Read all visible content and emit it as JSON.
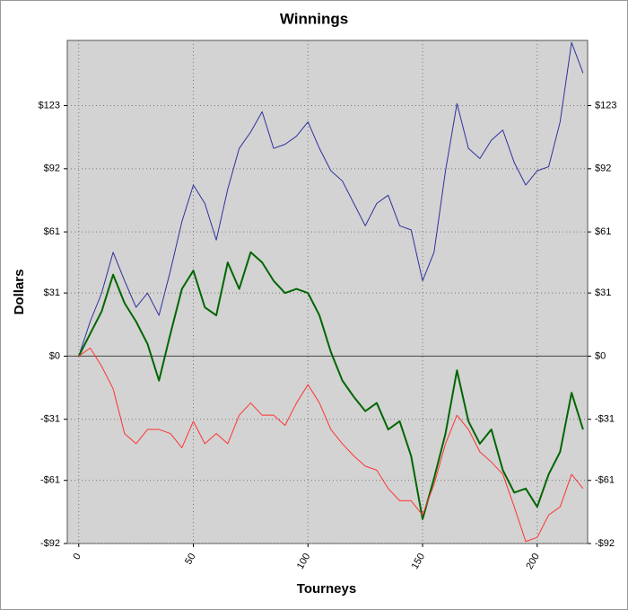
{
  "chart_data": {
    "type": "line",
    "title": "Winnings",
    "x_label": "Tourneys",
    "y_label": "Dollars",
    "x": [
      0,
      5,
      10,
      15,
      20,
      25,
      30,
      35,
      40,
      45,
      50,
      55,
      60,
      65,
      70,
      75,
      80,
      85,
      90,
      95,
      100,
      105,
      110,
      115,
      120,
      125,
      130,
      135,
      140,
      145,
      150,
      155,
      160,
      165,
      170,
      175,
      180,
      185,
      190,
      195,
      200,
      205,
      210,
      215,
      220
    ],
    "series": [
      {
        "color": "#3030a0",
        "line_width": 1,
        "values": [
          0,
          17,
          31,
          51,
          37,
          24,
          31,
          20,
          42,
          66,
          84,
          75,
          57,
          82,
          102,
          110,
          120,
          102,
          104,
          108,
          115,
          102,
          91,
          86,
          75,
          64,
          75,
          79,
          64,
          62,
          37,
          51,
          91,
          124,
          102,
          97,
          106,
          111,
          95,
          84,
          91,
          93,
          115,
          154,
          139
        ]
      },
      {
        "color": "#006600",
        "line_width": 2,
        "values": [
          0,
          11,
          22,
          40,
          26,
          17,
          6,
          -12,
          11,
          33,
          42,
          24,
          20,
          46,
          33,
          51,
          46,
          37,
          31,
          33,
          31,
          20,
          2,
          -12,
          -20,
          -27,
          -23,
          -36,
          -32,
          -49,
          -80,
          -60,
          -38,
          -7,
          -32,
          -43,
          -36,
          -56,
          -67,
          -65,
          -74,
          -58,
          -47,
          -18,
          -36
        ]
      },
      {
        "color": "#ff3333",
        "line_width": 1,
        "values": [
          0,
          4,
          -5,
          -16,
          -38,
          -43,
          -36,
          -36,
          -38,
          -45,
          -32,
          -43,
          -38,
          -43,
          -29,
          -23,
          -29,
          -29,
          -34,
          -23,
          -14,
          -23,
          -36,
          -43,
          -49,
          -54,
          -56,
          -65,
          -71,
          -71,
          -78,
          -63,
          -43,
          -29,
          -36,
          -47,
          -52,
          -58,
          -74,
          -91,
          -89,
          -78,
          -74,
          -58,
          -65
        ]
      }
    ],
    "xlim": [
      -5,
      222
    ],
    "xticks": [
      0,
      50,
      100,
      150,
      200
    ],
    "ylim": [
      -92,
      155
    ],
    "yticks": [
      {
        "value": -92,
        "label": "-$92"
      },
      {
        "value": -61,
        "label": "-$61"
      },
      {
        "value": -31,
        "label": "-$31"
      },
      {
        "value": 0,
        "label": "$0"
      },
      {
        "value": 31,
        "label": "$31"
      },
      {
        "value": 61,
        "label": "$61"
      },
      {
        "value": 92,
        "label": "$92"
      },
      {
        "value": 123,
        "label": "$123"
      }
    ],
    "grid": true
  }
}
